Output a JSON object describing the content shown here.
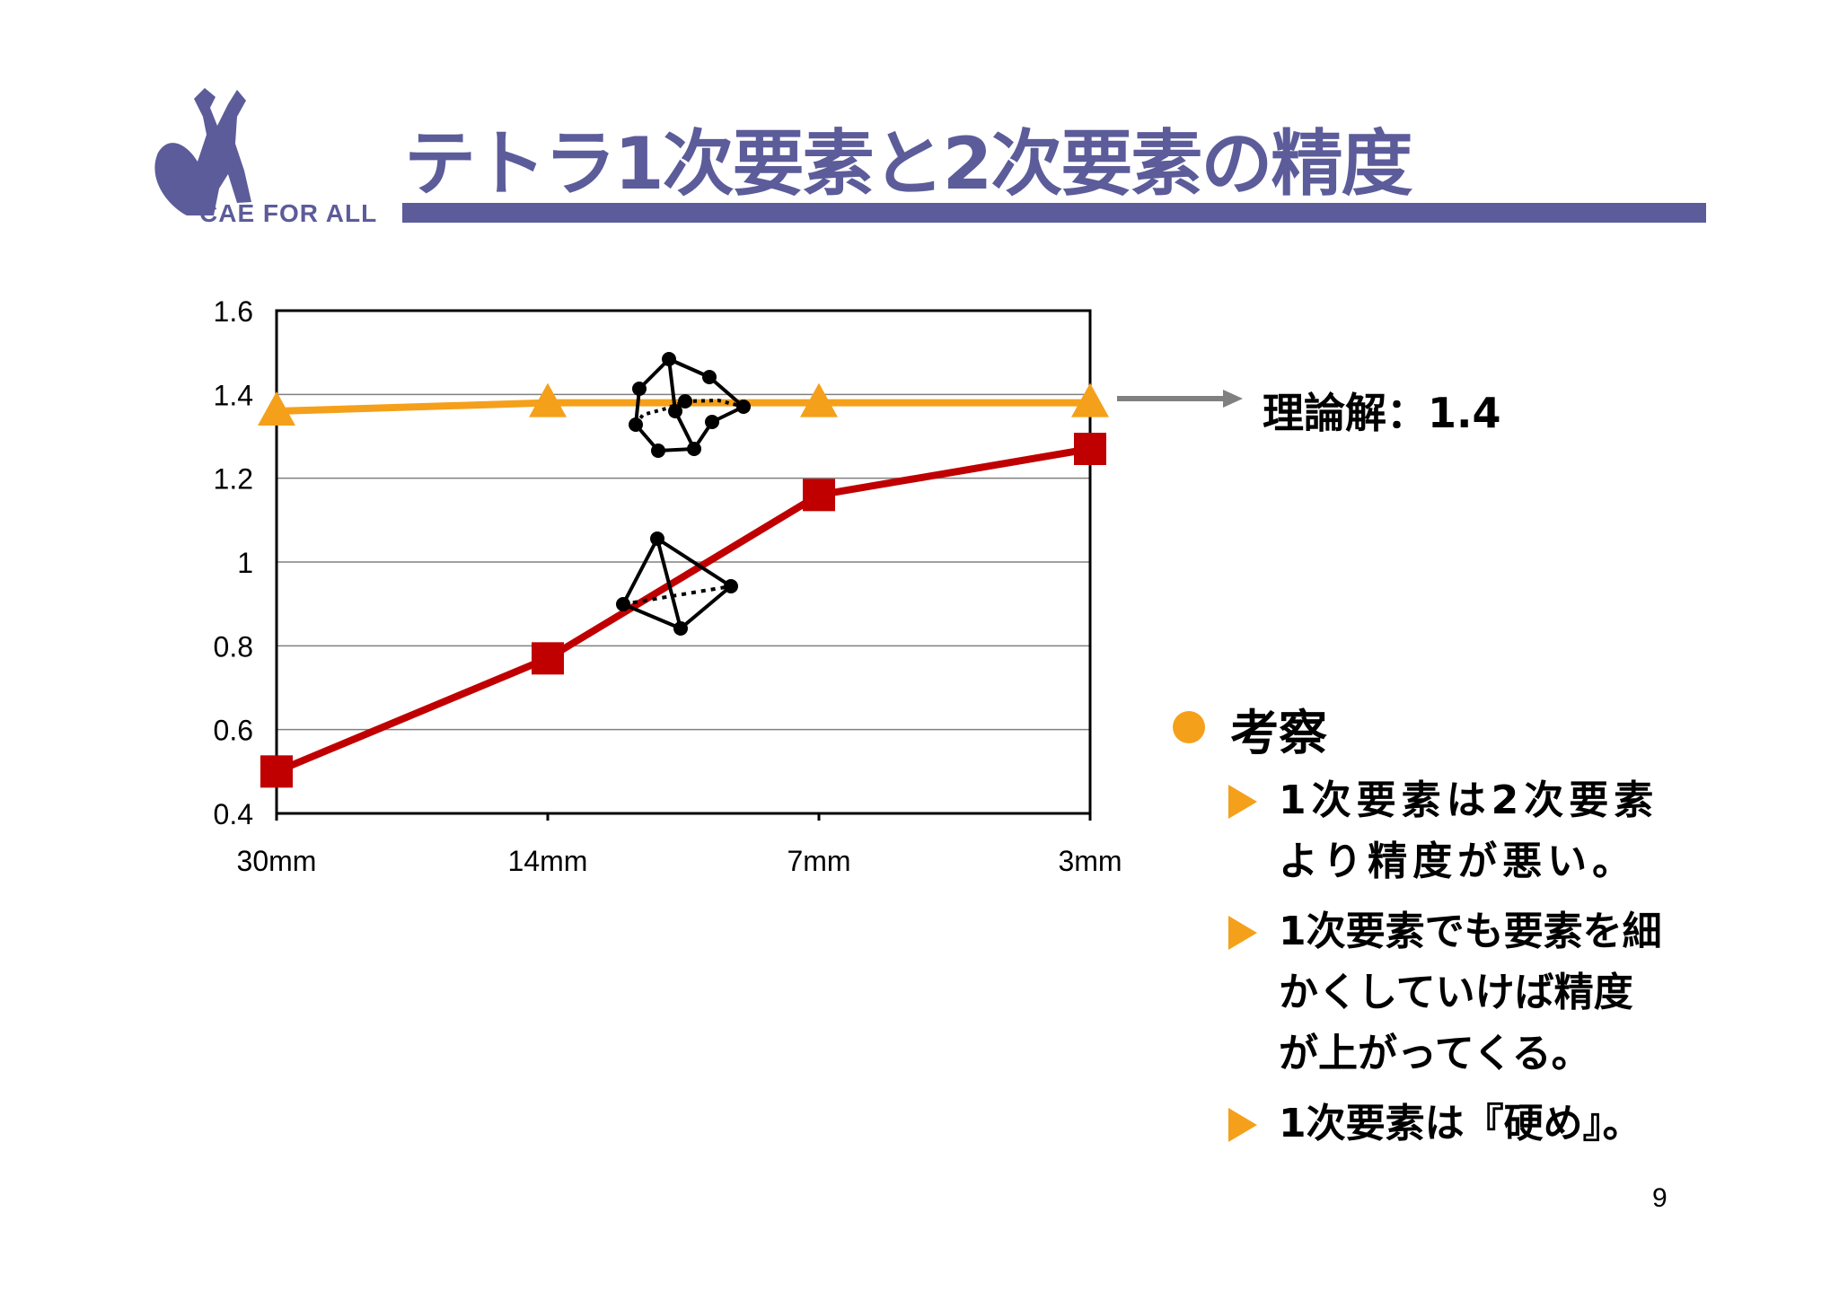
{
  "header": {
    "logo_text": "CAE FOR ALL",
    "title": "テトラ1次要素と2次要素の精度"
  },
  "theory_label": "理論解：1.4",
  "observations": {
    "heading": "考察",
    "items": [
      "1次要素は2次要素より精度が悪い。",
      "1次要素でも要素を細かくしていけば精度が上がってくる。",
      "1次要素は『硬め』。"
    ]
  },
  "page_number": "9",
  "colors": {
    "title": "#5c5c9a",
    "second_order": "#f5a01a",
    "first_order": "#c00000",
    "bullet": "#f5a01a"
  },
  "chart_data": {
    "type": "line",
    "categories": [
      "30mm",
      "14mm",
      "7mm",
      "3mm"
    ],
    "series": [
      {
        "marker": "triangle",
        "color": "#f5a01a",
        "values": [
          1.36,
          1.38,
          1.38,
          1.38
        ]
      },
      {
        "marker": "square",
        "color": "#c00000",
        "values": [
          0.5,
          0.77,
          1.16,
          1.27
        ]
      }
    ],
    "ylim": [
      0.4,
      1.6
    ],
    "yticks": [
      "0.4",
      "0.6",
      "0.8",
      "1",
      "1.2",
      "1.4",
      "1.6"
    ],
    "grid": true,
    "reference_value": 1.4
  }
}
